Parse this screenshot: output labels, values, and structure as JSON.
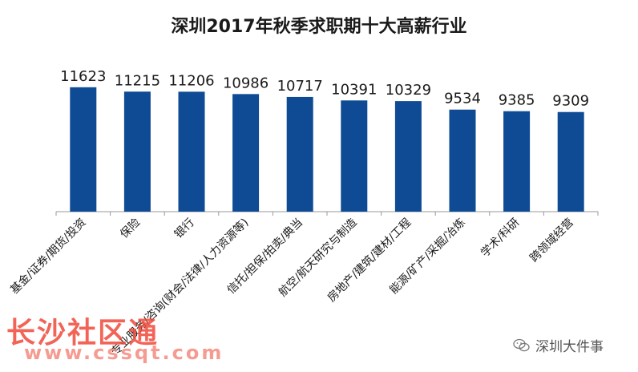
{
  "chart_data": {
    "type": "bar",
    "title": "深圳2017年秋季求职期十大高薪行业",
    "categories": [
      "基金/证券/期货/投资",
      "保险",
      "银行",
      "专业服务/咨询(财会/法律/人力资源等)",
      "信托/担保/拍卖/典当",
      "航空/航天研究与制造",
      "房地产/建筑/建材/工程",
      "能源/矿产/采掘/冶炼",
      "学术/科研",
      "跨领域经营"
    ],
    "values": [
      11623,
      11215,
      11206,
      10986,
      10717,
      10391,
      10329,
      9534,
      9385,
      9309
    ],
    "ylim": [
      0,
      12000
    ],
    "xlabel": "",
    "ylabel": "",
    "grid": false,
    "color": "#0e4b94"
  },
  "watermark": {
    "site_name": "长沙社区通",
    "site_url": "www.cssqt.com",
    "account": "深圳大件事"
  },
  "colors": {
    "bar": "#0e4b94",
    "watermark_red": "#f04a3a"
  }
}
